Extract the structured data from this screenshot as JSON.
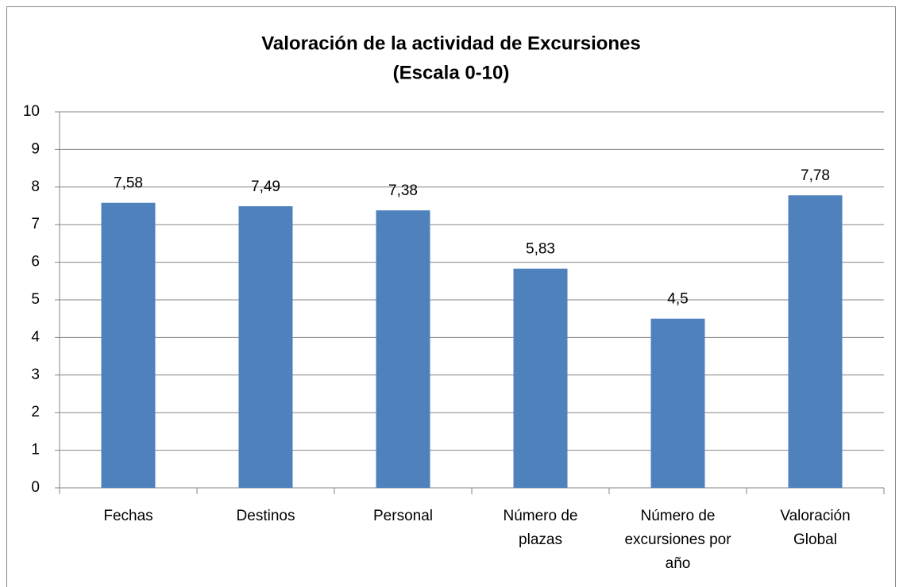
{
  "chart_data": {
    "type": "bar",
    "title": "Valoración de la actividad de Excursiones",
    "subtitle": "(Escala 0-10)",
    "categories": [
      "Fechas",
      "Destinos",
      "Personal",
      "Número de plazas",
      "Número de excursiones por año",
      "Valoración Global"
    ],
    "values": [
      7.58,
      7.49,
      7.38,
      5.83,
      4.5,
      7.78
    ],
    "value_labels": [
      "7,58",
      "7,49",
      "7,38",
      "5,83",
      "4,5",
      "7,78"
    ],
    "color": "#4f81bd",
    "ylim": [
      0,
      10
    ],
    "yticks": [
      0,
      1,
      2,
      3,
      4,
      5,
      6,
      7,
      8,
      9,
      10
    ],
    "grid": true
  }
}
